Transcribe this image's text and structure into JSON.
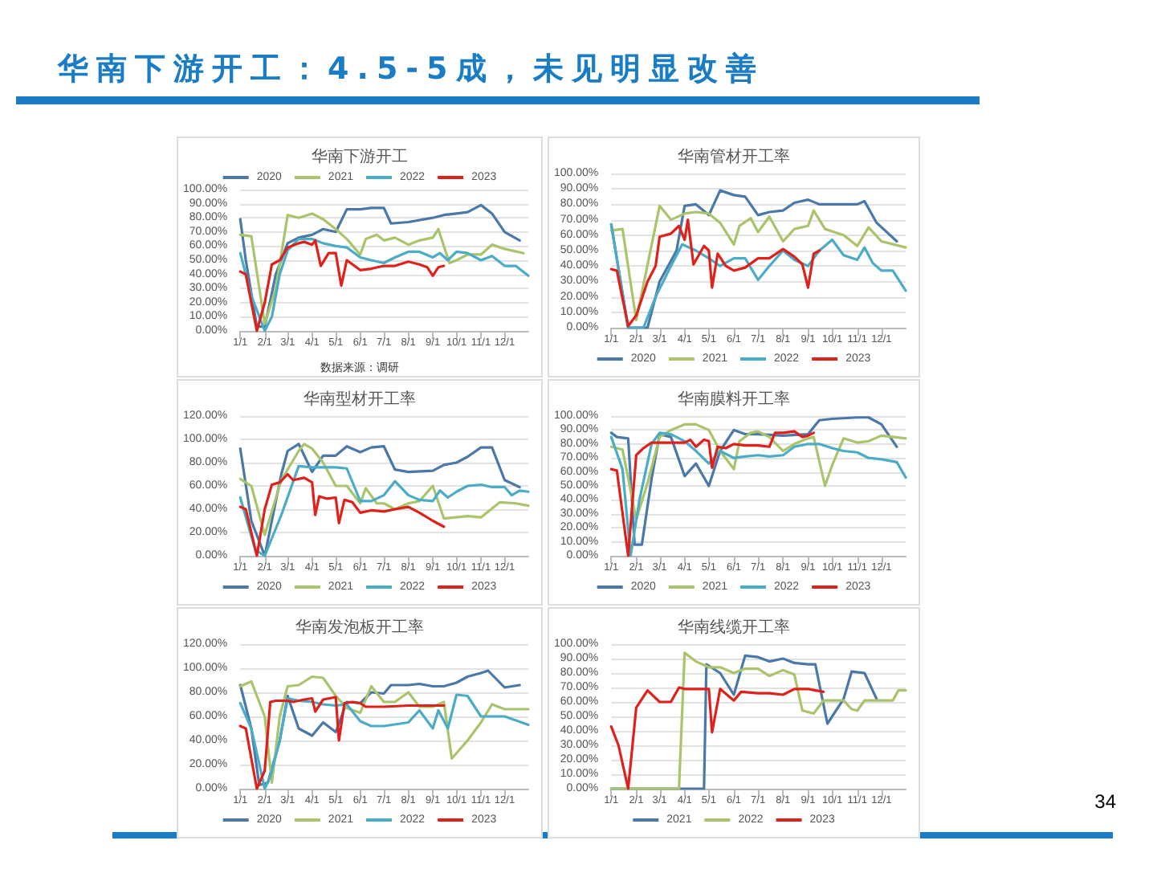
{
  "chart_data": [
    {
      "type": "other",
      "title": "华南下游开工：4.5-5成，未见明显改善",
      "annotations": [
        "34"
      ]
    },
    {
      "type": "line",
      "title": "华南下游开工",
      "annotations": [
        "数据来源：调研"
      ],
      "legend": "top",
      "grid": "y",
      "marker": "none",
      "line_style": "solid",
      "xlim": [
        "--01-01",
        "--12-31"
      ],
      "xticks": [
        {
          "value": "--01-01",
          "label": "1/1"
        },
        {
          "value": "--02-01",
          "label": "2/1"
        },
        {
          "value": "--03-01",
          "label": "3/1"
        },
        {
          "value": "--04-01",
          "label": "4/1"
        },
        {
          "value": "--05-01",
          "label": "5/1"
        },
        {
          "value": "--06-01",
          "label": "6/1"
        },
        {
          "value": "--07-01",
          "label": "7/1"
        },
        {
          "value": "--08-01",
          "label": "8/1"
        },
        {
          "value": "--09-01",
          "label": "9/1"
        },
        {
          "value": "--10-01",
          "label": "10/1"
        },
        {
          "value": "--11-01",
          "label": "11/1"
        },
        {
          "value": "--12-01",
          "label": "12/1"
        }
      ],
      "ylim": [
        0,
        100
      ],
      "yticks": [
        {
          "value": 0,
          "label": "0.00%"
        },
        {
          "value": 10,
          "label": "10.00%"
        },
        {
          "value": 20,
          "label": "20.00%"
        },
        {
          "value": 30,
          "label": "30.00%"
        },
        {
          "value": 40,
          "label": "40.00%"
        },
        {
          "value": 50,
          "label": "50.00%"
        },
        {
          "value": 60,
          "label": "60.00%"
        },
        {
          "value": 70,
          "label": "70.00%"
        },
        {
          "value": 80,
          "label": "80.00%"
        },
        {
          "value": 90,
          "label": "90.00%"
        },
        {
          "value": 100,
          "label": "100.00%"
        }
      ],
      "series": [
        {
          "name": "2020",
          "color": "#4a78a8",
          "x": [
            "--01-01",
            "--01-08",
            "--01-22",
            "--02-01",
            "--02-15",
            "--03-01",
            "--03-15",
            "--04-01",
            "--04-15",
            "--05-01",
            "--05-15",
            "--06-01",
            "--06-15",
            "--07-01",
            "--07-10",
            "--08-01",
            "--09-01",
            "--09-15",
            "--10-01",
            "--10-15",
            "--11-01",
            "--11-15",
            "--12-01",
            "--12-20"
          ],
          "values": [
            79,
            50,
            3,
            3,
            40,
            62,
            66,
            68,
            72,
            70,
            86,
            86,
            87,
            87,
            76,
            77,
            80,
            82,
            83,
            84,
            89,
            83,
            70,
            64
          ]
        },
        {
          "name": "2021",
          "color": "#a9c46b",
          "x": [
            "--01-01",
            "--01-15",
            "--02-01",
            "--02-15",
            "--03-01",
            "--03-15",
            "--04-01",
            "--04-15",
            "--05-01",
            "--05-15",
            "--06-01",
            "--06-08",
            "--06-22",
            "--07-01",
            "--07-15",
            "--08-01",
            "--08-15",
            "--09-01",
            "--09-08",
            "--09-22",
            "--10-01",
            "--10-15",
            "--11-01",
            "--11-15",
            "--12-01",
            "--12-25"
          ],
          "values": [
            68,
            67,
            5,
            30,
            82,
            80,
            83,
            79,
            72,
            65,
            54,
            65,
            68,
            64,
            66,
            61,
            64,
            66,
            72,
            48,
            50,
            54,
            54,
            61,
            58,
            55
          ]
        },
        {
          "name": "2022",
          "color": "#4bacc6",
          "x": [
            "--01-01",
            "--01-15",
            "--02-01",
            "--02-10",
            "--02-20",
            "--03-01",
            "--03-15",
            "--04-01",
            "--04-15",
            "--05-01",
            "--05-15",
            "--06-01",
            "--06-15",
            "--07-01",
            "--07-15",
            "--08-01",
            "--08-15",
            "--09-01",
            "--09-10",
            "--09-20",
            "--10-01",
            "--10-15",
            "--11-01",
            "--11-15",
            "--12-01",
            "--12-15",
            "--12-31"
          ],
          "values": [
            55,
            25,
            0,
            10,
            40,
            57,
            65,
            65,
            62,
            60,
            59,
            52,
            50,
            48,
            52,
            56,
            56,
            52,
            55,
            50,
            56,
            55,
            50,
            53,
            46,
            46,
            39
          ]
        },
        {
          "name": "2023",
          "color": "#e0201b",
          "x": [
            "--01-01",
            "--01-08",
            "--01-22",
            "--02-01",
            "--02-10",
            "--02-20",
            "--03-01",
            "--03-15",
            "--03-22",
            "--04-01",
            "--04-05",
            "--04-12",
            "--04-22",
            "--05-01",
            "--05-08",
            "--05-15",
            "--06-01",
            "--06-15",
            "--07-01",
            "--07-15",
            "--08-01",
            "--08-15",
            "--08-25",
            "--09-01",
            "--09-08",
            "--09-15"
          ],
          "values": [
            42,
            40,
            0,
            20,
            47,
            50,
            59,
            62,
            63,
            61,
            64,
            46,
            55,
            55,
            32,
            50,
            43,
            44,
            46,
            46,
            49,
            47,
            45,
            39,
            45,
            46
          ]
        }
      ]
    },
    {
      "type": "line",
      "title": "华南管材开工率",
      "legend": "bottom",
      "grid": "y",
      "marker": "none",
      "line_style": "solid",
      "xlim": [
        "--01-01",
        "--12-31"
      ],
      "xticks": [
        {
          "value": "--01-01",
          "label": "1/1"
        },
        {
          "value": "--02-01",
          "label": "2/1"
        },
        {
          "value": "--03-01",
          "label": "3/1"
        },
        {
          "value": "--04-01",
          "label": "4/1"
        },
        {
          "value": "--05-01",
          "label": "5/1"
        },
        {
          "value": "--06-01",
          "label": "6/1"
        },
        {
          "value": "--07-01",
          "label": "7/1"
        },
        {
          "value": "--08-01",
          "label": "8/1"
        },
        {
          "value": "--09-01",
          "label": "9/1"
        },
        {
          "value": "--10-01",
          "label": "10/1"
        },
        {
          "value": "--11-01",
          "label": "11/1"
        },
        {
          "value": "--12-01",
          "label": "12/1"
        }
      ],
      "ylim": [
        0,
        100
      ],
      "yticks": [
        {
          "value": 0,
          "label": "0.00%"
        },
        {
          "value": 10,
          "label": "10.00%"
        },
        {
          "value": 20,
          "label": "20.00%"
        },
        {
          "value": 30,
          "label": "30.00%"
        },
        {
          "value": 40,
          "label": "40.00%"
        },
        {
          "value": 50,
          "label": "50.00%"
        },
        {
          "value": 60,
          "label": "60.00%"
        },
        {
          "value": 70,
          "label": "70.00%"
        },
        {
          "value": 80,
          "label": "80.00%"
        },
        {
          "value": 90,
          "label": "90.00%"
        },
        {
          "value": 100,
          "label": "100.00%"
        }
      ],
      "series": [
        {
          "name": "2020",
          "color": "#4a78a8",
          "x": [
            "--01-01",
            "--01-22",
            "--02-01",
            "--02-15",
            "--03-01",
            "--03-22",
            "--04-01",
            "--04-15",
            "--05-01",
            "--05-15",
            "--06-01",
            "--06-15",
            "--07-01",
            "--07-15",
            "--08-01",
            "--08-15",
            "--09-01",
            "--09-15",
            "--10-01",
            "--11-01",
            "--11-10",
            "--11-25",
            "--12-20"
          ],
          "values": [
            67,
            0,
            0,
            0,
            30,
            50,
            79,
            80,
            73,
            89,
            86,
            85,
            73,
            75,
            76,
            81,
            83,
            80,
            80,
            80,
            82,
            68,
            56
          ]
        },
        {
          "name": "2021",
          "color": "#a9c46b",
          "x": [
            "--01-01",
            "--01-15",
            "--02-01",
            "--03-01",
            "--03-15",
            "--04-01",
            "--04-15",
            "--05-01",
            "--05-15",
            "--06-01",
            "--06-08",
            "--06-22",
            "--07-01",
            "--07-15",
            "--08-01",
            "--08-15",
            "--09-01",
            "--09-08",
            "--09-22",
            "--10-15",
            "--11-01",
            "--11-15",
            "--12-01",
            "--12-31"
          ],
          "values": [
            63,
            64,
            5,
            79,
            70,
            74,
            75,
            74,
            68,
            54,
            66,
            71,
            62,
            72,
            56,
            64,
            66,
            76,
            64,
            60,
            53,
            65,
            56,
            52
          ]
        },
        {
          "name": "2022",
          "color": "#4bacc6",
          "x": [
            "--01-01",
            "--01-22",
            "--02-10",
            "--02-25",
            "--03-15",
            "--03-29",
            "--04-15",
            "--05-01",
            "--05-15",
            "--06-01",
            "--06-15",
            "--07-01",
            "--07-15",
            "--08-01",
            "--08-15",
            "--09-01",
            "--09-15",
            "--10-01",
            "--10-15",
            "--11-01",
            "--11-10",
            "--11-20",
            "--12-01",
            "--12-15",
            "--12-31"
          ],
          "values": [
            67,
            0,
            0,
            20,
            40,
            54,
            50,
            45,
            40,
            45,
            45,
            31,
            40,
            50,
            44,
            40,
            50,
            57,
            47,
            44,
            52,
            42,
            37,
            37,
            24
          ]
        },
        {
          "name": "2023",
          "color": "#e0201b",
          "x": [
            "--01-01",
            "--01-08",
            "--01-22",
            "--02-01",
            "--02-15",
            "--02-25",
            "--03-01",
            "--03-15",
            "--03-25",
            "--04-01",
            "--04-05",
            "--04-12",
            "--04-25",
            "--05-01",
            "--05-05",
            "--05-12",
            "--05-22",
            "--06-01",
            "--06-15",
            "--07-01",
            "--07-15",
            "--08-01",
            "--08-15",
            "--08-25",
            "--09-01",
            "--09-08",
            "--09-15"
          ],
          "values": [
            38,
            37,
            1,
            8,
            30,
            40,
            59,
            61,
            66,
            57,
            70,
            41,
            53,
            50,
            26,
            48,
            40,
            37,
            39,
            45,
            45,
            51,
            46,
            41,
            26,
            48,
            50
          ]
        }
      ]
    },
    {
      "type": "line",
      "title": "华南型材开工率",
      "legend": "bottom",
      "grid": "y",
      "marker": "none",
      "line_style": "solid",
      "xlim": [
        "--01-01",
        "--12-31"
      ],
      "xticks": [
        {
          "value": "--01-01",
          "label": "1/1"
        },
        {
          "value": "--02-01",
          "label": "2/1"
        },
        {
          "value": "--03-01",
          "label": "3/1"
        },
        {
          "value": "--04-01",
          "label": "4/1"
        },
        {
          "value": "--05-01",
          "label": "5/1"
        },
        {
          "value": "--06-01",
          "label": "6/1"
        },
        {
          "value": "--07-01",
          "label": "7/1"
        },
        {
          "value": "--08-01",
          "label": "8/1"
        },
        {
          "value": "--09-01",
          "label": "9/1"
        },
        {
          "value": "--10-01",
          "label": "10/1"
        },
        {
          "value": "--11-01",
          "label": "11/1"
        },
        {
          "value": "--12-01",
          "label": "12/1"
        }
      ],
      "ylim": [
        0,
        120
      ],
      "yticks": [
        {
          "value": 0,
          "label": "0.00%"
        },
        {
          "value": 20,
          "label": "20.00%"
        },
        {
          "value": 40,
          "label": "40.00%"
        },
        {
          "value": 60,
          "label": "60.00%"
        },
        {
          "value": 80,
          "label": "80.00%"
        },
        {
          "value": 100,
          "label": "100.00%"
        },
        {
          "value": 120,
          "label": "120.00%"
        }
      ],
      "series": [
        {
          "name": "2020",
          "color": "#4a78a8",
          "x": [
            "--01-01",
            "--01-15",
            "--02-01",
            "--02-22",
            "--03-01",
            "--03-15",
            "--04-01",
            "--04-15",
            "--05-01",
            "--05-15",
            "--06-01",
            "--06-15",
            "--07-01",
            "--07-15",
            "--08-01",
            "--09-01",
            "--09-15",
            "--10-01",
            "--10-15",
            "--11-01",
            "--11-15",
            "--12-01",
            "--12-20"
          ],
          "values": [
            92,
            30,
            0,
            70,
            90,
            96,
            72,
            86,
            86,
            94,
            89,
            93,
            94,
            74,
            72,
            73,
            78,
            80,
            85,
            93,
            93,
            65,
            59
          ]
        },
        {
          "name": "2021",
          "color": "#a9c46b",
          "x": [
            "--01-01",
            "--01-15",
            "--02-01",
            "--02-22",
            "--03-15",
            "--03-22",
            "--04-01",
            "--04-15",
            "--05-01",
            "--05-15",
            "--06-01",
            "--06-08",
            "--06-22",
            "--07-01",
            "--07-15",
            "--08-01",
            "--08-15",
            "--09-01",
            "--09-15",
            "--10-15",
            "--11-01",
            "--11-25",
            "--12-15",
            "--12-31"
          ],
          "values": [
            66,
            60,
            18,
            65,
            90,
            96,
            92,
            80,
            60,
            60,
            45,
            58,
            45,
            45,
            40,
            45,
            47,
            60,
            32,
            34,
            33,
            46,
            45,
            43
          ]
        },
        {
          "name": "2022",
          "color": "#4bacc6",
          "x": [
            "--01-01",
            "--01-20",
            "--02-01",
            "--02-22",
            "--03-15",
            "--04-01",
            "--04-15",
            "--05-01",
            "--05-15",
            "--06-01",
            "--06-15",
            "--07-01",
            "--07-15",
            "--08-01",
            "--08-15",
            "--09-01",
            "--09-10",
            "--09-20",
            "--10-01",
            "--10-15",
            "--11-01",
            "--11-15",
            "--12-01",
            "--12-10",
            "--12-20",
            "--12-31"
          ],
          "values": [
            50,
            5,
            0,
            35,
            77,
            76,
            76,
            76,
            75,
            47,
            47,
            52,
            64,
            52,
            48,
            47,
            56,
            50,
            55,
            60,
            61,
            59,
            59,
            52,
            56,
            55
          ]
        },
        {
          "name": "2023",
          "color": "#e0201b",
          "x": [
            "--01-01",
            "--01-08",
            "--01-22",
            "--02-01",
            "--02-10",
            "--02-20",
            "--03-01",
            "--03-08",
            "--03-22",
            "--04-01",
            "--04-05",
            "--04-10",
            "--04-20",
            "--05-01",
            "--05-05",
            "--05-12",
            "--05-22",
            "--06-01",
            "--06-15",
            "--07-01",
            "--07-15",
            "--08-01",
            "--08-15",
            "--09-01",
            "--09-15"
          ],
          "values": [
            42,
            40,
            0,
            40,
            61,
            63,
            70,
            65,
            67,
            63,
            35,
            51,
            49,
            50,
            28,
            48,
            46,
            37,
            39,
            38,
            40,
            42,
            37,
            30,
            25
          ]
        }
      ]
    },
    {
      "type": "line",
      "title": "华南膜料开工率",
      "legend": "bottom",
      "grid": "y",
      "marker": "none",
      "line_style": "solid",
      "xlim": [
        "--01-01",
        "--12-31"
      ],
      "xticks": [
        {
          "value": "--01-01",
          "label": "1/1"
        },
        {
          "value": "--02-01",
          "label": "2/1"
        },
        {
          "value": "--03-01",
          "label": "3/1"
        },
        {
          "value": "--04-01",
          "label": "4/1"
        },
        {
          "value": "--05-01",
          "label": "5/1"
        },
        {
          "value": "--06-01",
          "label": "6/1"
        },
        {
          "value": "--07-01",
          "label": "7/1"
        },
        {
          "value": "--08-01",
          "label": "8/1"
        },
        {
          "value": "--09-01",
          "label": "9/1"
        },
        {
          "value": "--10-01",
          "label": "10/1"
        },
        {
          "value": "--11-01",
          "label": "11/1"
        },
        {
          "value": "--12-01",
          "label": "12/1"
        }
      ],
      "ylim": [
        0,
        100
      ],
      "yticks": [
        {
          "value": 0,
          "label": "0.00%"
        },
        {
          "value": 10,
          "label": "10.00%"
        },
        {
          "value": 20,
          "label": "20.00%"
        },
        {
          "value": 30,
          "label": "30.00%"
        },
        {
          "value": 40,
          "label": "40.00%"
        },
        {
          "value": 50,
          "label": "50.00%"
        },
        {
          "value": 60,
          "label": "60.00%"
        },
        {
          "value": 70,
          "label": "70.00%"
        },
        {
          "value": 80,
          "label": "80.00%"
        },
        {
          "value": 90,
          "label": "90.00%"
        },
        {
          "value": 100,
          "label": "100.00%"
        }
      ],
      "series": [
        {
          "name": "2020",
          "color": "#4a78a8",
          "x": [
            "--01-01",
            "--01-08",
            "--01-22",
            "--01-30",
            "--02-08",
            "--02-20",
            "--03-01",
            "--03-15",
            "--04-01",
            "--04-15",
            "--05-01",
            "--05-15",
            "--06-01",
            "--06-15",
            "--07-01",
            "--08-01",
            "--09-01",
            "--09-15",
            "--10-01",
            "--11-01",
            "--11-15",
            "--12-01",
            "--12-20"
          ],
          "values": [
            88,
            85,
            84,
            8,
            8,
            55,
            87,
            85,
            57,
            66,
            50,
            75,
            90,
            87,
            87,
            86,
            87,
            97,
            98,
            99,
            99,
            94,
            78
          ]
        },
        {
          "name": "2021",
          "color": "#a9c46b",
          "x": [
            "--01-01",
            "--01-15",
            "--02-01",
            "--02-15",
            "--03-01",
            "--03-15",
            "--04-01",
            "--04-15",
            "--05-01",
            "--05-15",
            "--06-01",
            "--06-08",
            "--06-22",
            "--07-01",
            "--07-15",
            "--08-01",
            "--08-15",
            "--09-01",
            "--09-08",
            "--09-22",
            "--10-01",
            "--10-15",
            "--11-01",
            "--11-15",
            "--12-01",
            "--12-31"
          ],
          "values": [
            78,
            76,
            26,
            52,
            85,
            90,
            94,
            94,
            90,
            75,
            62,
            82,
            88,
            89,
            85,
            75,
            80,
            84,
            85,
            50,
            65,
            84,
            81,
            82,
            86,
            84
          ]
        },
        {
          "name": "2022",
          "color": "#4bacc6",
          "x": [
            "--01-01",
            "--01-15",
            "--01-25",
            "--02-05",
            "--02-20",
            "--03-01",
            "--03-15",
            "--04-01",
            "--04-15",
            "--05-01",
            "--05-15",
            "--06-01",
            "--06-15",
            "--07-01",
            "--07-15",
            "--08-01",
            "--08-15",
            "--09-01",
            "--09-15",
            "--10-01",
            "--10-15",
            "--11-01",
            "--11-15",
            "--12-01",
            "--12-20",
            "--12-31"
          ],
          "values": [
            85,
            62,
            0,
            40,
            80,
            88,
            87,
            82,
            75,
            66,
            75,
            70,
            71,
            72,
            71,
            72,
            78,
            80,
            80,
            77,
            75,
            74,
            70,
            69,
            67,
            56
          ]
        },
        {
          "name": "2023",
          "color": "#e0201b",
          "x": [
            "--01-01",
            "--01-08",
            "--01-22",
            "--02-01",
            "--02-10",
            "--02-20",
            "--03-01",
            "--03-15",
            "--04-01",
            "--04-08",
            "--04-15",
            "--04-25",
            "--05-01",
            "--05-05",
            "--05-12",
            "--05-22",
            "--06-01",
            "--06-15",
            "--07-01",
            "--07-15",
            "--07-22",
            "--08-01",
            "--08-15",
            "--08-25",
            "--09-01",
            "--09-08"
          ],
          "values": [
            62,
            61,
            0,
            72,
            77,
            81,
            81,
            81,
            81,
            83,
            78,
            83,
            82,
            63,
            78,
            77,
            80,
            79,
            79,
            78,
            88,
            88,
            89,
            85,
            86,
            88
          ]
        }
      ]
    },
    {
      "type": "line",
      "title": "华南发泡板开工率",
      "legend": "bottom",
      "grid": "y",
      "marker": "none",
      "line_style": "solid",
      "xlim": [
        "--01-01",
        "--12-31"
      ],
      "xticks": [
        {
          "value": "--01-01",
          "label": "1/1"
        },
        {
          "value": "--02-01",
          "label": "2/1"
        },
        {
          "value": "--03-01",
          "label": "3/1"
        },
        {
          "value": "--04-01",
          "label": "4/1"
        },
        {
          "value": "--05-01",
          "label": "5/1"
        },
        {
          "value": "--06-01",
          "label": "6/1"
        },
        {
          "value": "--07-01",
          "label": "7/1"
        },
        {
          "value": "--08-01",
          "label": "8/1"
        },
        {
          "value": "--09-01",
          "label": "9/1"
        },
        {
          "value": "--10-01",
          "label": "10/1"
        },
        {
          "value": "--11-01",
          "label": "11/1"
        },
        {
          "value": "--12-01",
          "label": "12/1"
        }
      ],
      "ylim": [
        0,
        120
      ],
      "yticks": [
        {
          "value": 0,
          "label": "0.00%"
        },
        {
          "value": 20,
          "label": "20.00%"
        },
        {
          "value": 40,
          "label": "40.00%"
        },
        {
          "value": 60,
          "label": "60.00%"
        },
        {
          "value": 80,
          "label": "80.00%"
        },
        {
          "value": 100,
          "label": "100.00%"
        },
        {
          "value": 120,
          "label": "120.00%"
        }
      ],
      "series": [
        {
          "name": "2020",
          "color": "#4a78a8",
          "x": [
            "--01-01",
            "--01-15",
            "--01-25",
            "--02-05",
            "--02-20",
            "--03-01",
            "--03-15",
            "--04-01",
            "--04-15",
            "--05-01",
            "--05-15",
            "--06-01",
            "--06-15",
            "--07-01",
            "--07-10",
            "--08-01",
            "--08-15",
            "--09-01",
            "--09-15",
            "--10-01",
            "--10-15",
            "--11-01",
            "--11-10",
            "--12-01",
            "--12-20"
          ],
          "values": [
            86,
            50,
            3,
            5,
            40,
            77,
            50,
            44,
            55,
            47,
            72,
            71,
            80,
            79,
            86,
            86,
            87,
            85,
            85,
            88,
            93,
            96,
            98,
            84,
            86
          ]
        },
        {
          "name": "2021",
          "color": "#a9c46b",
          "x": [
            "--01-01",
            "--01-15",
            "--02-01",
            "--02-10",
            "--02-20",
            "--03-01",
            "--03-15",
            "--04-01",
            "--04-15",
            "--05-01",
            "--05-15",
            "--06-01",
            "--06-15",
            "--07-01",
            "--07-15",
            "--08-01",
            "--08-15",
            "--09-01",
            "--09-15",
            "--09-25",
            "--10-15",
            "--11-01",
            "--11-15",
            "--12-01",
            "--12-31"
          ],
          "values": [
            85,
            89,
            60,
            5,
            60,
            85,
            86,
            93,
            92,
            77,
            67,
            63,
            85,
            72,
            72,
            80,
            68,
            68,
            72,
            25,
            40,
            55,
            70,
            66,
            66
          ]
        },
        {
          "name": "2022",
          "color": "#4bacc6",
          "x": [
            "--01-01",
            "--01-15",
            "--02-01",
            "--02-08",
            "--02-20",
            "--03-01",
            "--03-15",
            "--04-01",
            "--04-15",
            "--05-01",
            "--05-15",
            "--06-01",
            "--06-15",
            "--07-01",
            "--08-01",
            "--08-15",
            "--09-01",
            "--09-08",
            "--09-20",
            "--10-01",
            "--10-15",
            "--11-01",
            "--12-01",
            "--12-31"
          ],
          "values": [
            71,
            50,
            0,
            10,
            40,
            75,
            73,
            72,
            70,
            69,
            70,
            56,
            52,
            52,
            55,
            65,
            50,
            65,
            50,
            78,
            77,
            60,
            60,
            53
          ]
        },
        {
          "name": "2023",
          "color": "#e0201b",
          "x": [
            "--01-01",
            "--01-08",
            "--01-22",
            "--02-01",
            "--02-08",
            "--02-15",
            "--03-01",
            "--03-08",
            "--03-22",
            "--04-01",
            "--04-05",
            "--04-15",
            "--05-01",
            "--05-05",
            "--05-12",
            "--05-22",
            "--06-01",
            "--06-08",
            "--07-01",
            "--08-01",
            "--09-01",
            "--09-15"
          ],
          "values": [
            52,
            50,
            0,
            15,
            72,
            73,
            73,
            72,
            74,
            75,
            64,
            74,
            76,
            40,
            71,
            72,
            71,
            68,
            68,
            69,
            69,
            69
          ]
        }
      ]
    },
    {
      "type": "line",
      "title": "华南线缆开工率",
      "legend": "bottom",
      "grid": "y",
      "marker": "none",
      "line_style": "solid",
      "xlim": [
        "--01-01",
        "--12-31"
      ],
      "xticks": [
        {
          "value": "--01-01",
          "label": "1/1"
        },
        {
          "value": "--02-01",
          "label": "2/1"
        },
        {
          "value": "--03-01",
          "label": "3/1"
        },
        {
          "value": "--04-01",
          "label": "4/1"
        },
        {
          "value": "--05-01",
          "label": "5/1"
        },
        {
          "value": "--06-01",
          "label": "6/1"
        },
        {
          "value": "--07-01",
          "label": "7/1"
        },
        {
          "value": "--08-01",
          "label": "8/1"
        },
        {
          "value": "--09-01",
          "label": "9/1"
        },
        {
          "value": "--10-01",
          "label": "10/1"
        },
        {
          "value": "--11-01",
          "label": "11/1"
        },
        {
          "value": "--12-01",
          "label": "12/1"
        }
      ],
      "ylim": [
        0,
        100
      ],
      "yticks": [
        {
          "value": 0,
          "label": "0.00%"
        },
        {
          "value": 10,
          "label": "10.00%"
        },
        {
          "value": 20,
          "label": "20.00%"
        },
        {
          "value": 30,
          "label": "30.00%"
        },
        {
          "value": 40,
          "label": "40.00%"
        },
        {
          "value": 50,
          "label": "50.00%"
        },
        {
          "value": 60,
          "label": "60.00%"
        },
        {
          "value": 70,
          "label": "70.00%"
        },
        {
          "value": 80,
          "label": "80.00%"
        },
        {
          "value": 90,
          "label": "90.00%"
        },
        {
          "value": 100,
          "label": "100.00%"
        }
      ],
      "series": [
        {
          "name": "2021",
          "color": "#4a78a8",
          "x": [
            "--01-01",
            "--04-25",
            "--04-28",
            "--05-15",
            "--06-01",
            "--06-15",
            "--07-01",
            "--07-15",
            "--08-01",
            "--08-15",
            "--09-01",
            "--09-10",
            "--09-25",
            "--10-15",
            "--10-25",
            "--11-10",
            "--11-25"
          ],
          "values": [
            0,
            0,
            86,
            80,
            65,
            92,
            91,
            88,
            90,
            87,
            86,
            86,
            45,
            62,
            81,
            80,
            62
          ]
        },
        {
          "name": "2022",
          "color": "#a9c46b",
          "x": [
            "--01-01",
            "--03-25",
            "--04-01",
            "--04-15",
            "--05-01",
            "--05-15",
            "--06-01",
            "--06-15",
            "--07-01",
            "--07-15",
            "--08-01",
            "--08-15",
            "--08-25",
            "--09-08",
            "--09-20",
            "--10-15",
            "--10-25",
            "--11-01",
            "--11-10",
            "--12-01",
            "--12-15",
            "--12-22",
            "--12-31"
          ],
          "values": [
            0,
            0,
            94,
            88,
            84,
            84,
            80,
            83,
            83,
            78,
            82,
            79,
            54,
            52,
            61,
            61,
            55,
            54,
            61,
            61,
            61,
            68,
            68
          ]
        },
        {
          "name": "2023",
          "color": "#e0201b",
          "x": [
            "--01-01",
            "--01-10",
            "--01-22",
            "--02-01",
            "--02-15",
            "--03-01",
            "--03-15",
            "--03-25",
            "--04-01",
            "--04-15",
            "--05-01",
            "--05-05",
            "--05-15",
            "--06-01",
            "--06-10",
            "--07-01",
            "--07-15",
            "--08-01",
            "--08-15",
            "--09-01",
            "--09-10",
            "--09-20"
          ],
          "values": [
            43,
            30,
            0,
            56,
            68,
            60,
            60,
            70,
            69,
            69,
            69,
            39,
            69,
            61,
            67,
            66,
            66,
            65,
            69,
            69,
            68,
            67
          ]
        }
      ]
    }
  ]
}
